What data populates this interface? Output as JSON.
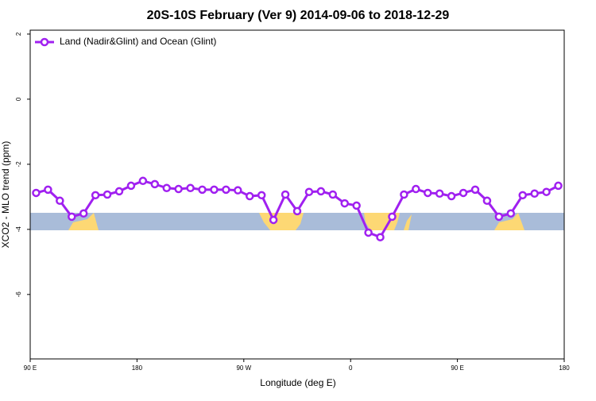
{
  "chart_data": {
    "type": "line",
    "title": "20S-10S February (Ver 9)   2014-09-06 to 2018-12-29",
    "xlabel": "Longitude (deg E)",
    "ylabel": "XCO2 - MLO trend (ppm)",
    "legend": "topleft",
    "xlim": [
      90,
      540
    ],
    "ylim": [
      -7.98,
      2.12
    ],
    "xticks": [
      {
        "value": 90,
        "label": "90 E"
      },
      180,
      {
        "value": 270,
        "label": "90 W"
      },
      {
        "value": 360,
        "label": "0"
      },
      {
        "value": 450,
        "label": "90 E"
      },
      {
        "value": 540,
        "label": "180"
      }
    ],
    "yticks": [
      -6,
      -4,
      -2,
      0,
      2
    ],
    "x": [
      95,
      105,
      115,
      125,
      135,
      145,
      155,
      165,
      175,
      185,
      195,
      205,
      215,
      225,
      235,
      245,
      255,
      265,
      275,
      285,
      295,
      305,
      315,
      325,
      335,
      345,
      355,
      365,
      375,
      385,
      395,
      405,
      415,
      425,
      435,
      445,
      455,
      465,
      475,
      485,
      495,
      505,
      515,
      525,
      535
    ],
    "series": [
      {
        "name": "Land (Nadir&Glint) and Ocean (Glint)",
        "color": "#a020f0",
        "values": [
          -2.88,
          -2.78,
          -3.12,
          -3.61,
          -3.51,
          -2.95,
          -2.93,
          -2.83,
          -2.66,
          -2.51,
          -2.61,
          -2.73,
          -2.76,
          -2.73,
          -2.78,
          -2.78,
          -2.78,
          -2.8,
          -2.98,
          -2.95,
          -3.71,
          -2.93,
          -3.44,
          -2.85,
          -2.83,
          -2.93,
          -3.2,
          -3.27,
          -4.1,
          -4.24,
          -3.61,
          -2.93,
          -2.76,
          -2.88,
          -2.9,
          -2.98,
          -2.88,
          -2.78,
          -3.12,
          -3.61,
          -3.51,
          -2.95,
          -2.9,
          -2.85,
          -2.66
        ]
      }
    ]
  }
}
